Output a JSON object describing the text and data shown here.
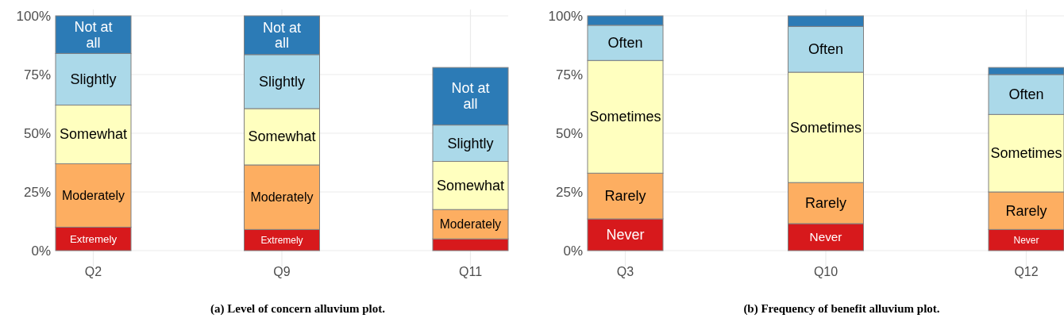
{
  "chart_data": [
    {
      "type": "bar",
      "stacked": true,
      "title": "(a)  Level of concern alluvium plot.",
      "categories": [
        "Q2",
        "Q9",
        "Q11"
      ],
      "ylim": [
        0,
        100
      ],
      "yticks": [
        {
          "value": 0,
          "label": "0%"
        },
        {
          "value": 25,
          "label": "25%"
        },
        {
          "value": 50,
          "label": "50%"
        },
        {
          "value": 75,
          "label": "75%"
        },
        {
          "value": 100,
          "label": "100%"
        }
      ],
      "grid": true,
      "series": [
        {
          "name": "Extremely",
          "color": "#d7191c",
          "values": [
            10,
            9,
            5
          ]
        },
        {
          "name": "Moderately",
          "color": "#fdae61",
          "values": [
            27,
            27.5,
            12.5
          ]
        },
        {
          "name": "Somewhat",
          "color": "#ffffbf",
          "values": [
            25,
            24,
            20.5
          ]
        },
        {
          "name": "Slightly",
          "color": "#abd9e9",
          "values": [
            22,
            23,
            15.5
          ]
        },
        {
          "name": "Not at all",
          "color": "#2c7bb6",
          "values": [
            16,
            16.5,
            24.5
          ]
        }
      ]
    },
    {
      "type": "bar",
      "stacked": true,
      "title": "(b)  Frequency of benefit alluvium plot.",
      "categories": [
        "Q3",
        "Q10",
        "Q12"
      ],
      "ylim": [
        0,
        100
      ],
      "yticks": [
        {
          "value": 0,
          "label": "0%"
        },
        {
          "value": 25,
          "label": "25%"
        },
        {
          "value": 50,
          "label": "50%"
        },
        {
          "value": 75,
          "label": "75%"
        },
        {
          "value": 100,
          "label": "100%"
        }
      ],
      "grid": true,
      "series": [
        {
          "name": "Never",
          "color": "#d7191c",
          "values": [
            13.5,
            11.5,
            9
          ]
        },
        {
          "name": "Rarely",
          "color": "#fdae61",
          "values": [
            19.5,
            17.5,
            16
          ]
        },
        {
          "name": "Sometimes",
          "color": "#ffffbf",
          "values": [
            48,
            47,
            33
          ]
        },
        {
          "name": "Often",
          "color": "#abd9e9",
          "values": [
            15,
            19.5,
            17
          ]
        },
        {
          "color": "#2c7bb6",
          "values": [
            4,
            4.5,
            3
          ]
        }
      ]
    }
  ]
}
